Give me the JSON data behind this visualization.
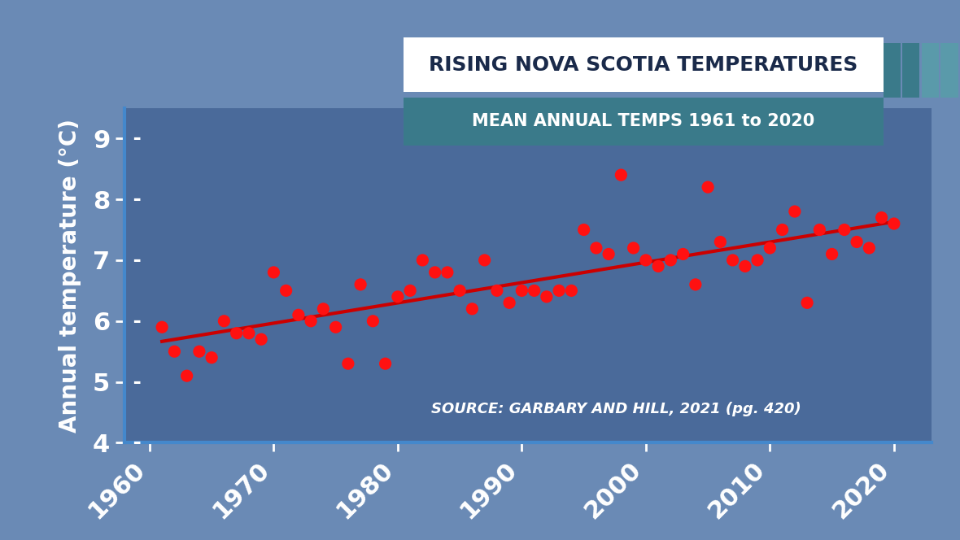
{
  "title": "RISING NOVA SCOTIA TEMPERATURES",
  "subtitle": "MEAN ANNUAL TEMPS 1961 to 2020",
  "source": "SOURCE: GARBARY AND HILL, 2021 (pg. 420)",
  "ylabel": "Annual temperature (°C)",
  "xlim": [
    1958,
    2023
  ],
  "ylim": [
    4,
    9.5
  ],
  "yticks": [
    4,
    5,
    6,
    7,
    8,
    9
  ],
  "xticks": [
    1960,
    1970,
    1980,
    1990,
    2000,
    2010,
    2020
  ],
  "bg_color": "#4a6fa5",
  "plot_bg_color": "#4a6a9a",
  "point_color": "#ff1111",
  "line_color": "#cc0000",
  "years": [
    1961,
    1962,
    1963,
    1964,
    1965,
    1966,
    1967,
    1968,
    1969,
    1970,
    1971,
    1972,
    1973,
    1974,
    1975,
    1976,
    1977,
    1978,
    1979,
    1980,
    1981,
    1982,
    1983,
    1984,
    1985,
    1986,
    1987,
    1988,
    1989,
    1990,
    1991,
    1992,
    1993,
    1994,
    1995,
    1996,
    1997,
    1998,
    1999,
    2000,
    2001,
    2002,
    2003,
    2004,
    2005,
    2006,
    2007,
    2008,
    2009,
    2010,
    2011,
    2012,
    2013,
    2014,
    2015,
    2016,
    2017,
    2018,
    2019,
    2020
  ],
  "temps": [
    5.9,
    5.5,
    5.1,
    5.5,
    5.4,
    6.0,
    5.8,
    5.8,
    5.7,
    6.8,
    6.5,
    6.1,
    6.0,
    6.2,
    5.9,
    5.3,
    6.6,
    6.0,
    5.3,
    6.4,
    6.5,
    7.0,
    6.8,
    6.8,
    6.5,
    6.2,
    7.0,
    6.5,
    6.3,
    6.5,
    6.5,
    6.4,
    6.5,
    6.5,
    7.5,
    7.2,
    7.1,
    8.4,
    7.2,
    7.0,
    6.9,
    7.0,
    7.1,
    6.6,
    8.2,
    7.3,
    7.0,
    6.9,
    7.0,
    7.2,
    7.5,
    7.8,
    6.3,
    7.5,
    7.1,
    7.5,
    7.3,
    7.2,
    7.7,
    7.6
  ]
}
